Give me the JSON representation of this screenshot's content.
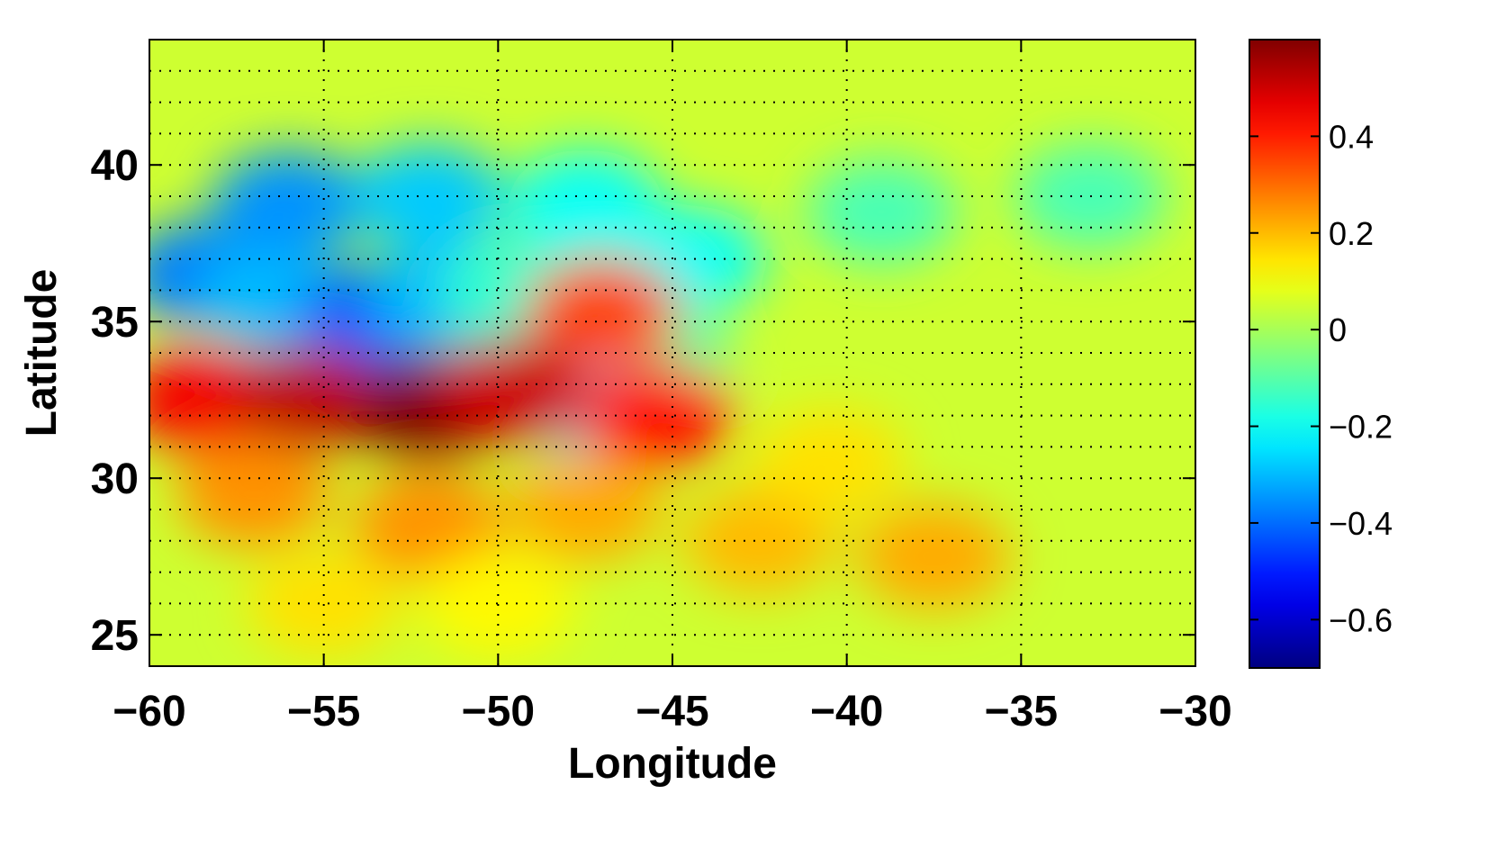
{
  "chart_data": {
    "type": "heatmap",
    "title": "",
    "xlabel": "Longitude",
    "ylabel": "Latitude",
    "xlim": [
      -60,
      -30
    ],
    "ylim": [
      24,
      44
    ],
    "xticks": [
      -60,
      -55,
      -50,
      -45,
      -40,
      -35,
      -30
    ],
    "xtick_labels": [
      "−60",
      "−55",
      "−50",
      "−45",
      "−40",
      "−35",
      "−30"
    ],
    "yticks": [
      25,
      30,
      35,
      40
    ],
    "ytick_labels": [
      "25",
      "30",
      "35",
      "40"
    ],
    "grid": true,
    "colorbar": {
      "colormap": "jet",
      "clim": [
        -0.7,
        0.6
      ],
      "ticks": [
        0.4,
        0.2,
        0,
        -0.2,
        -0.4,
        -0.6
      ],
      "tick_labels": [
        "0.4",
        "0.2",
        "0",
        "−0.2",
        "−0.4",
        "−0.6"
      ],
      "placement": "right"
    },
    "background_value": 0.05,
    "features": [
      {
        "lon": -58.5,
        "lat": 36.5,
        "value": -0.38
      },
      {
        "lon": -56.5,
        "lat": 35.8,
        "value": -0.3
      },
      {
        "lon": -53.5,
        "lat": 35.2,
        "value": -0.42
      },
      {
        "lon": -51.5,
        "lat": 35.8,
        "value": -0.3
      },
      {
        "lon": -49.5,
        "lat": 36.0,
        "value": -0.15
      },
      {
        "lon": -56.0,
        "lat": 38.8,
        "value": -0.35
      },
      {
        "lon": -52.0,
        "lat": 39.0,
        "value": -0.28
      },
      {
        "lon": -47.5,
        "lat": 38.8,
        "value": -0.2
      },
      {
        "lon": -44.5,
        "lat": 37.0,
        "value": -0.2
      },
      {
        "lon": -39.0,
        "lat": 38.5,
        "value": -0.12
      },
      {
        "lon": -33.0,
        "lat": 39.0,
        "value": -0.12
      },
      {
        "lon": -45.5,
        "lat": 34.0,
        "value": -0.1
      },
      {
        "lon": -47.5,
        "lat": 32.5,
        "value": -0.25
      },
      {
        "lon": -47.0,
        "lat": 35.3,
        "value": 0.35
      },
      {
        "lon": -58.5,
        "lat": 32.5,
        "value": 0.45
      },
      {
        "lon": -55.5,
        "lat": 32.5,
        "value": 0.52
      },
      {
        "lon": -52.0,
        "lat": 32.2,
        "value": 0.6
      },
      {
        "lon": -49.5,
        "lat": 32.8,
        "value": 0.5
      },
      {
        "lon": -45.5,
        "lat": 32.0,
        "value": 0.42
      },
      {
        "lon": -57.0,
        "lat": 29.5,
        "value": 0.25
      },
      {
        "lon": -52.0,
        "lat": 28.5,
        "value": 0.25
      },
      {
        "lon": -47.5,
        "lat": 29.0,
        "value": 0.22
      },
      {
        "lon": -42.5,
        "lat": 28.0,
        "value": 0.2
      },
      {
        "lon": -37.5,
        "lat": 27.5,
        "value": 0.22
      },
      {
        "lon": -40.5,
        "lat": 30.5,
        "value": 0.15
      },
      {
        "lon": -55.0,
        "lat": 26.0,
        "value": 0.15
      },
      {
        "lon": -50.0,
        "lat": 26.0,
        "value": 0.12
      }
    ]
  }
}
